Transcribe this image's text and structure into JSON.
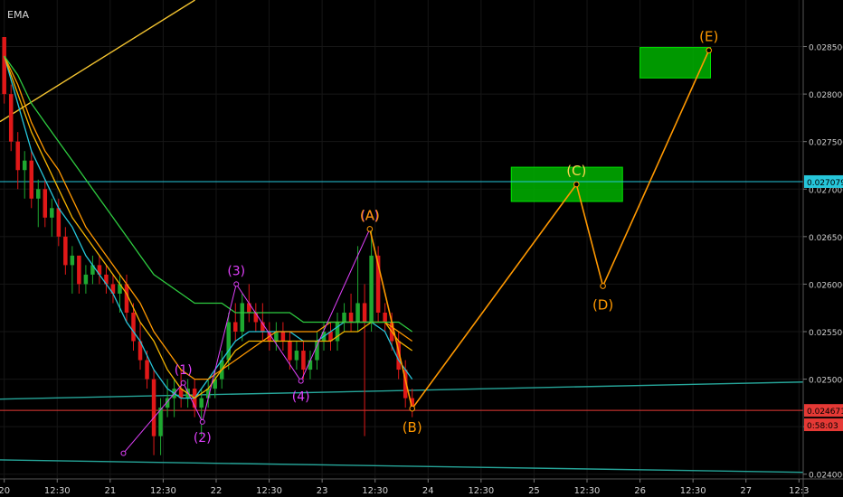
{
  "indicator": {
    "label": "EMA"
  },
  "chart_data": {
    "type": "candlestick",
    "y_axis": {
      "ticks": [
        "0.028500",
        "0.028000",
        "0.027500",
        "0.027000",
        "0.026500",
        "0.026000",
        "0.025500",
        "0.025000",
        "0.024500",
        "0.024000"
      ],
      "tick_values": [
        0.0285,
        0.028,
        0.0275,
        0.027,
        0.0265,
        0.026,
        0.0255,
        0.025,
        0.0245,
        0.024
      ],
      "range": [
        0.02395,
        0.02899
      ]
    },
    "x_axis": {
      "ticks": [
        "20",
        "12:30",
        "21",
        "12:30",
        "22",
        "12:30",
        "23",
        "12:30",
        "24",
        "12:30",
        "25",
        "12:30",
        "26",
        "12:30",
        "27",
        "12:3"
      ],
      "tick_index": [
        0,
        1,
        2,
        3,
        4,
        5,
        6,
        7,
        8,
        9,
        10,
        11,
        12,
        13,
        14,
        15
      ],
      "range": [
        -0.08,
        15.08
      ]
    },
    "price_labels": [
      {
        "text": "0.027079",
        "value": 0.027079,
        "color": "#26c6da"
      },
      {
        "text": "0.024671",
        "value": 0.024671,
        "color": "#e53935"
      },
      {
        "text": "0:58:03",
        "value": 0.02452,
        "color": "#e53935"
      }
    ],
    "horizontal_lines": [
      {
        "value": 0.027079,
        "color": "#26c6da"
      },
      {
        "value": 0.024671,
        "color": "#e53935"
      }
    ],
    "trend_lines": [
      {
        "from": [
          -0.08,
          0.02479
        ],
        "to": [
          15.08,
          0.02497
        ],
        "color": "#26a69a"
      },
      {
        "from": [
          -0.08,
          0.02415
        ],
        "to": [
          15.08,
          0.02402
        ],
        "color": "#26a69a"
      },
      {
        "from": [
          -0.08,
          0.02771
        ],
        "to": [
          3.6,
          0.02899
        ],
        "color": "#f4c430"
      }
    ],
    "candles": [
      [
        0.0286,
        0.0286,
        0.0279,
        0.028
      ],
      [
        0.028,
        0.0281,
        0.0274,
        0.0275
      ],
      [
        0.0275,
        0.0276,
        0.027,
        0.0272
      ],
      [
        0.0272,
        0.0274,
        0.0269,
        0.0273
      ],
      [
        0.0273,
        0.0274,
        0.0268,
        0.0269
      ],
      [
        0.0269,
        0.0271,
        0.0266,
        0.027
      ],
      [
        0.027,
        0.0271,
        0.0266,
        0.0267
      ],
      [
        0.0267,
        0.0269,
        0.0265,
        0.0268
      ],
      [
        0.0268,
        0.0269,
        0.0264,
        0.0265
      ],
      [
        0.0265,
        0.0266,
        0.0261,
        0.0262
      ],
      [
        0.0262,
        0.0264,
        0.0259,
        0.0263
      ],
      [
        0.0263,
        0.0263,
        0.0259,
        0.026
      ],
      [
        0.026,
        0.0262,
        0.0259,
        0.0261
      ],
      [
        0.0261,
        0.0263,
        0.026,
        0.0262
      ],
      [
        0.0262,
        0.0263,
        0.026,
        0.0261
      ],
      [
        0.0261,
        0.0262,
        0.0259,
        0.026
      ],
      [
        0.026,
        0.0261,
        0.0258,
        0.0259
      ],
      [
        0.0259,
        0.0261,
        0.0257,
        0.026
      ],
      [
        0.026,
        0.0261,
        0.0256,
        0.0257
      ],
      [
        0.0257,
        0.0258,
        0.0253,
        0.0254
      ],
      [
        0.0254,
        0.0256,
        0.0251,
        0.0252
      ],
      [
        0.0252,
        0.0253,
        0.0249,
        0.025
      ],
      [
        0.025,
        0.0251,
        0.0242,
        0.0244
      ],
      [
        0.0244,
        0.0248,
        0.0242,
        0.0247
      ],
      [
        0.0247,
        0.025,
        0.0246,
        0.0248
      ],
      [
        0.0248,
        0.025,
        0.0246,
        0.0249
      ],
      [
        0.0249,
        0.0251,
        0.0247,
        0.0248
      ],
      [
        0.0248,
        0.025,
        0.0247,
        0.0249
      ],
      [
        0.0249,
        0.025,
        0.0246,
        0.0247
      ],
      [
        0.0247,
        0.0249,
        0.0244,
        0.0248
      ],
      [
        0.0248,
        0.025,
        0.0247,
        0.0249
      ],
      [
        0.0249,
        0.0251,
        0.0248,
        0.025
      ],
      [
        0.025,
        0.0253,
        0.0249,
        0.0252
      ],
      [
        0.0252,
        0.0257,
        0.0251,
        0.0256
      ],
      [
        0.0256,
        0.0258,
        0.0254,
        0.0255
      ],
      [
        0.0255,
        0.0259,
        0.0254,
        0.0258
      ],
      [
        0.0258,
        0.026,
        0.0256,
        0.0257
      ],
      [
        0.0257,
        0.0258,
        0.0255,
        0.0256
      ],
      [
        0.0256,
        0.0258,
        0.0254,
        0.0255
      ],
      [
        0.0255,
        0.0256,
        0.0253,
        0.0254
      ],
      [
        0.0254,
        0.0256,
        0.0253,
        0.0255
      ],
      [
        0.0255,
        0.0256,
        0.0253,
        0.0254
      ],
      [
        0.0254,
        0.0255,
        0.0251,
        0.0252
      ],
      [
        0.0252,
        0.0254,
        0.0251,
        0.0253
      ],
      [
        0.0253,
        0.0254,
        0.025,
        0.0251
      ],
      [
        0.0251,
        0.0253,
        0.025,
        0.0252
      ],
      [
        0.0252,
        0.0255,
        0.0251,
        0.0254
      ],
      [
        0.0254,
        0.0256,
        0.0253,
        0.0255
      ],
      [
        0.0255,
        0.0256,
        0.0253,
        0.0254
      ],
      [
        0.0254,
        0.0257,
        0.0253,
        0.0256
      ],
      [
        0.0256,
        0.0258,
        0.0255,
        0.0257
      ],
      [
        0.0257,
        0.0259,
        0.0255,
        0.0256
      ],
      [
        0.0256,
        0.0264,
        0.0255,
        0.0258
      ],
      [
        0.0258,
        0.026,
        0.0244,
        0.0256
      ],
      [
        0.0256,
        0.0266,
        0.0255,
        0.0263
      ],
      [
        0.0263,
        0.0264,
        0.0256,
        0.0257
      ],
      [
        0.0257,
        0.0258,
        0.0255,
        0.0256
      ],
      [
        0.0256,
        0.0257,
        0.0253,
        0.0254
      ],
      [
        0.0254,
        0.0255,
        0.025,
        0.0251
      ],
      [
        0.0251,
        0.0252,
        0.0247,
        0.0248
      ],
      [
        0.0248,
        0.0249,
        0.0246,
        0.0247
      ]
    ],
    "candle_colors": {
      "up": "#1ea830",
      "down": "#e01818"
    },
    "ema_lines": [
      {
        "color": "#26c6da",
        "values": [
          0.0284,
          0.0279,
          0.0274,
          0.0271,
          0.0268,
          0.0266,
          0.0263,
          0.0261,
          0.0259,
          0.0256,
          0.0254,
          0.0251,
          0.0249,
          0.0248,
          0.0248,
          0.025,
          0.0252,
          0.0254,
          0.0255,
          0.0255,
          0.0255,
          0.0255,
          0.0254,
          0.0254,
          0.0255,
          0.0256,
          0.0256,
          0.0256,
          0.0255,
          0.0252,
          0.025
        ]
      },
      {
        "color": "#f4b400",
        "values": [
          0.0284,
          0.028,
          0.0276,
          0.0273,
          0.027,
          0.0267,
          0.0265,
          0.0263,
          0.0261,
          0.0259,
          0.0256,
          0.0254,
          0.0251,
          0.0249,
          0.0248,
          0.0249,
          0.0251,
          0.0253,
          0.0254,
          0.0254,
          0.0254,
          0.0254,
          0.0254,
          0.0254,
          0.0254,
          0.0255,
          0.0255,
          0.0256,
          0.0256,
          0.0254,
          0.0253
        ]
      },
      {
        "color": "#ff9800",
        "values": [
          0.0284,
          0.0281,
          0.0277,
          0.0274,
          0.0272,
          0.0269,
          0.0266,
          0.0264,
          0.0262,
          0.026,
          0.0258,
          0.0255,
          0.0253,
          0.0251,
          0.025,
          0.025,
          0.0251,
          0.0252,
          0.0253,
          0.0254,
          0.0255,
          0.0255,
          0.0255,
          0.0255,
          0.0256,
          0.0256,
          0.0256,
          0.0256,
          0.0256,
          0.0255,
          0.0254
        ]
      },
      {
        "color": "#2ecc40",
        "values": [
          0.0284,
          0.0282,
          0.0279,
          0.0277,
          0.0275,
          0.0273,
          0.0271,
          0.0269,
          0.0267,
          0.0265,
          0.0263,
          0.0261,
          0.026,
          0.0259,
          0.0258,
          0.0258,
          0.0258,
          0.0257,
          0.0257,
          0.0257,
          0.0257,
          0.0257,
          0.0256,
          0.0256,
          0.0256,
          0.0256,
          0.0256,
          0.0256,
          0.0256,
          0.0256,
          0.0255
        ]
      }
    ],
    "zones": [
      {
        "x": [
          9.57,
          11.67
        ],
        "y": [
          0.02687,
          0.02723
        ],
        "color": "#00b300"
      },
      {
        "x": [
          12.0,
          13.33
        ],
        "y": [
          0.02817,
          0.02849
        ],
        "color": "#00b300"
      }
    ],
    "wave_projection": {
      "color": "#ff9800",
      "points": [
        {
          "label": "(A)",
          "x": 6.9,
          "y": 0.02658
        },
        {
          "label": "(B)",
          "x": 7.7,
          "y": 0.02469
        },
        {
          "label": "(C)",
          "x": 10.8,
          "y": 0.02705
        },
        {
          "label": "(D)",
          "x": 11.3,
          "y": 0.02598
        },
        {
          "label": "(E)",
          "x": 13.3,
          "y": 0.02846
        }
      ]
    },
    "impulse_waves": {
      "color": "#e040fb",
      "points": [
        {
          "label": "",
          "x": 2.25,
          "y": 0.02422
        },
        {
          "label": "(1)",
          "x": 3.38,
          "y": 0.02496
        },
        {
          "label": "(2)",
          "x": 3.74,
          "y": 0.02455
        },
        {
          "label": "(3)",
          "x": 4.38,
          "y": 0.026
        },
        {
          "label": "(4)",
          "x": 5.6,
          "y": 0.02498
        },
        {
          "label": "(A)",
          "x": 6.9,
          "y": 0.02658
        }
      ]
    }
  }
}
